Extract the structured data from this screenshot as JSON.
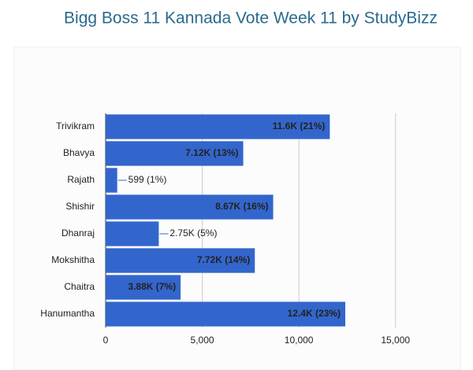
{
  "chart_data": {
    "type": "bar",
    "orientation": "horizontal",
    "title": "Bigg Boss 11 Kannada Vote Week 11 by StudyBizz",
    "categories": [
      "Trivikram",
      "Bhavya",
      "Rajath",
      "Shishir",
      "Dhanraj",
      "Mokshitha",
      "Chaitra",
      "Hanumantha"
    ],
    "values": [
      11600,
      7120,
      599,
      8670,
      2750,
      7720,
      3880,
      12400
    ],
    "value_labels": [
      "11.6K (21%)",
      "7.12K (13%)",
      "599 (1%)",
      "8.67K (16%)",
      "2.75K (5%)",
      "7.72K (14%)",
      "3.88K (7%)",
      "12.4K (23%)"
    ],
    "color": "#3366cc",
    "xlim": [
      0,
      17500
    ],
    "xticks": [
      0,
      {
        "value": 5000,
        "label": "5,000"
      },
      {
        "value": 10000,
        "label": "10,000"
      },
      {
        "value": 15000,
        "label": "15,000"
      }
    ],
    "grid": true
  }
}
